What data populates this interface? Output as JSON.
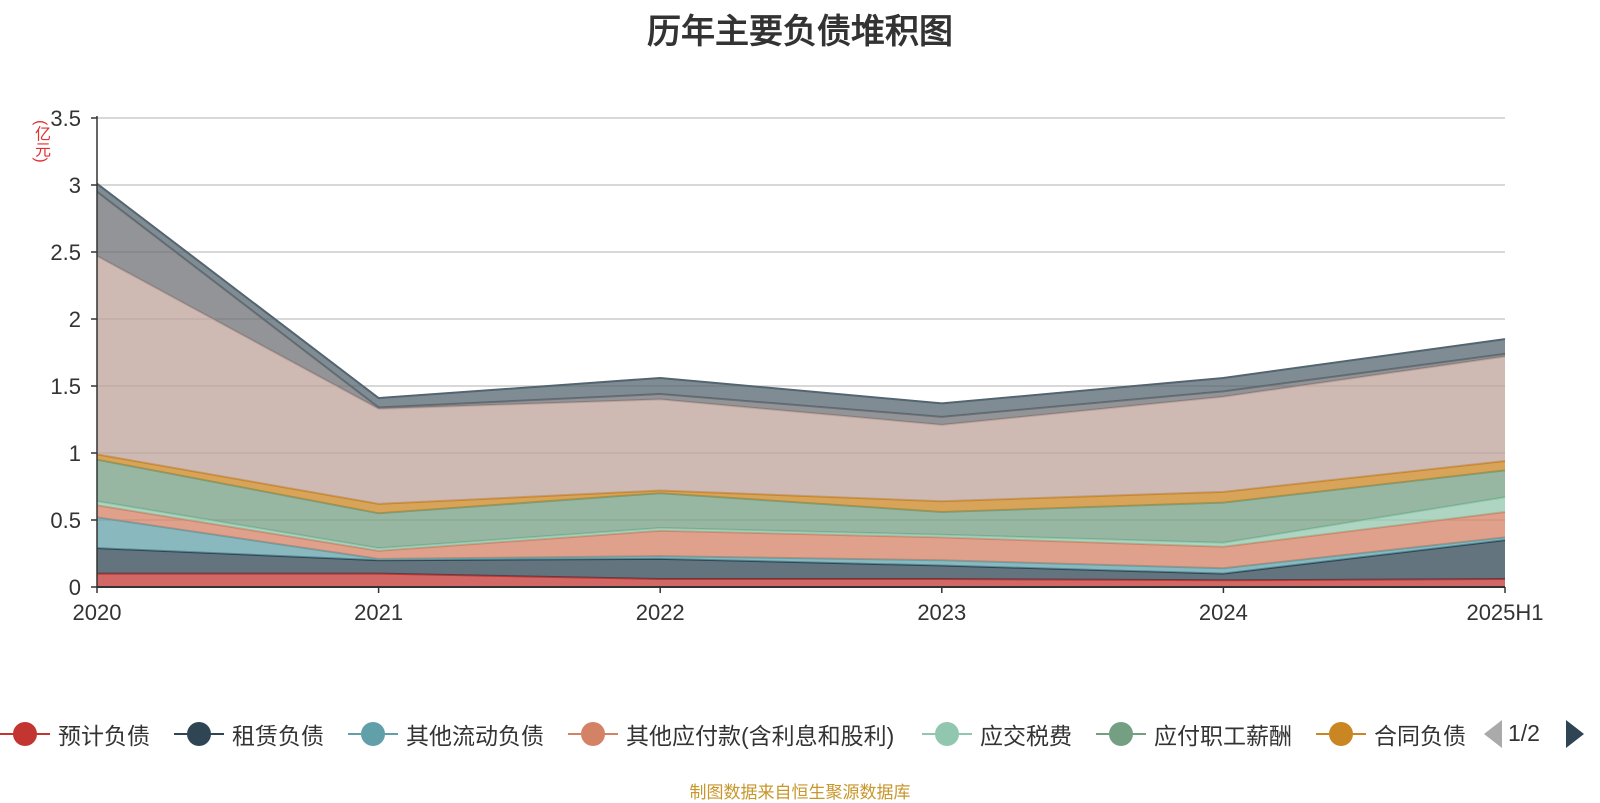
{
  "title": "历年主要负债堆积图",
  "unit_label": "(亿元)",
  "source_note": "制图数据来自恒生聚源数据库",
  "legend_page": "1/2",
  "chart_data": {
    "type": "area",
    "stacked": true,
    "title": "历年主要负债堆积图",
    "ylabel": "(亿元)",
    "x": [
      "2020",
      "2021",
      "2022",
      "2023",
      "2024",
      "2025H1"
    ],
    "ylim": [
      0,
      3.5
    ],
    "yticks": [
      0,
      0.5,
      1,
      1.5,
      2,
      2.5,
      3,
      3.5
    ],
    "ytick_labels": [
      "0",
      "0.5",
      "1",
      "1.5",
      "2",
      "2.5",
      "3",
      "3.5"
    ],
    "grid": true,
    "legend_position": "bottom",
    "series": [
      {
        "name": "预计负债",
        "color": "#c23531",
        "values": [
          0.1,
          0.1,
          0.06,
          0.06,
          0.05,
          0.06
        ],
        "legend_visible": true
      },
      {
        "name": "租赁负债",
        "color": "#2f4554",
        "values": [
          0.19,
          0.1,
          0.15,
          0.1,
          0.05,
          0.29
        ],
        "legend_visible": true
      },
      {
        "name": "其他流动负债",
        "color": "#61a0a8",
        "values": [
          0.23,
          0.01,
          0.02,
          0.04,
          0.04,
          0.02
        ],
        "legend_visible": true
      },
      {
        "name": "其他应付款(含利息和股利)",
        "color": "#d48265",
        "values": [
          0.09,
          0.06,
          0.19,
          0.17,
          0.16,
          0.19
        ],
        "legend_visible": true
      },
      {
        "name": "应交税费",
        "color": "#91c7ae",
        "values": [
          0.03,
          0.02,
          0.02,
          0.02,
          0.03,
          0.11
        ],
        "legend_visible": true
      },
      {
        "name": "应付职工薪酬",
        "color": "#749f83",
        "values": [
          0.31,
          0.26,
          0.26,
          0.17,
          0.3,
          0.2
        ],
        "legend_visible": true
      },
      {
        "name": "合同负债",
        "color": "#ca8622",
        "values": [
          0.04,
          0.07,
          0.02,
          0.08,
          0.08,
          0.07
        ],
        "legend_visible": true
      },
      {
        "name": "",
        "color": "#bda29a",
        "values": [
          1.48,
          0.71,
          0.68,
          0.57,
          0.71,
          0.78
        ],
        "legend_visible": false
      },
      {
        "name": "",
        "color": "#6e7074",
        "values": [
          0.48,
          0.01,
          0.04,
          0.06,
          0.04,
          0.02
        ],
        "legend_visible": false
      },
      {
        "name": "",
        "color": "#546570",
        "values": [
          0.06,
          0.07,
          0.12,
          0.1,
          0.1,
          0.11
        ],
        "legend_visible": false
      }
    ]
  }
}
